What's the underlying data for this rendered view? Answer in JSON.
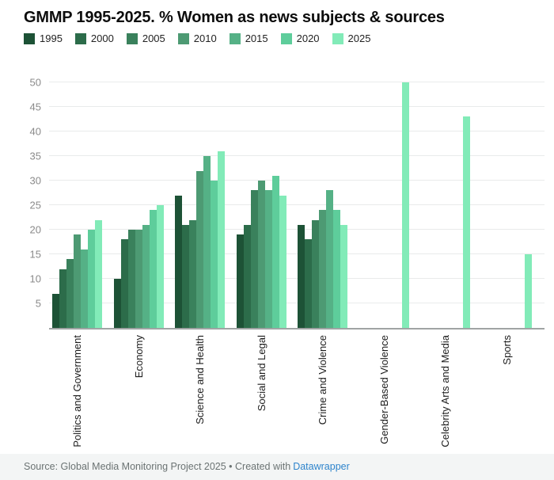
{
  "header": {
    "title": "GMMP 1995-2025. % Women as news subjects & sources"
  },
  "chart_data": {
    "type": "bar",
    "bar_orientation": "vertical",
    "title": "GMMP 1995-2025. % Women as news subjects & sources",
    "categories": [
      "Politics and Government",
      "Economy",
      "Science and Health",
      "Social and Legal",
      "Crime and Violence",
      "Gender-Based Violence",
      "Celebrity Arts and Media",
      "Sports"
    ],
    "series": [
      {
        "name": "1995",
        "color": "#1d5236",
        "values": [
          7,
          10,
          27,
          19,
          21,
          null,
          null,
          null
        ]
      },
      {
        "name": "2000",
        "color": "#2c6c4a",
        "values": [
          12,
          18,
          21,
          21,
          18,
          null,
          null,
          null
        ]
      },
      {
        "name": "2005",
        "color": "#3a815c",
        "values": [
          14,
          20,
          22,
          28,
          22,
          null,
          null,
          null
        ]
      },
      {
        "name": "2010",
        "color": "#4d9a73",
        "values": [
          19,
          20,
          32,
          30,
          24,
          null,
          null,
          null
        ]
      },
      {
        "name": "2015",
        "color": "#55b186",
        "values": [
          16,
          21,
          35,
          28,
          28,
          null,
          null,
          null
        ]
      },
      {
        "name": "2020",
        "color": "#5ecd9b",
        "values": [
          20,
          24,
          30,
          31,
          24,
          null,
          null,
          null
        ]
      },
      {
        "name": "2025",
        "color": "#82ebb8",
        "values": [
          22,
          25,
          36,
          27,
          21,
          50,
          43,
          15
        ]
      }
    ],
    "xlabel": "",
    "ylabel": "",
    "ylim": [
      0,
      50
    ],
    "yticks": [
      5,
      10,
      15,
      20,
      25,
      30,
      35,
      40,
      45,
      50
    ],
    "grid": true,
    "legend_position": "top",
    "x_label_rotation": "vertical"
  },
  "footer": {
    "source_prefix": "Source: Global Media Monitoring Project 2025 • Created with",
    "link_text": "Datawrapper"
  }
}
